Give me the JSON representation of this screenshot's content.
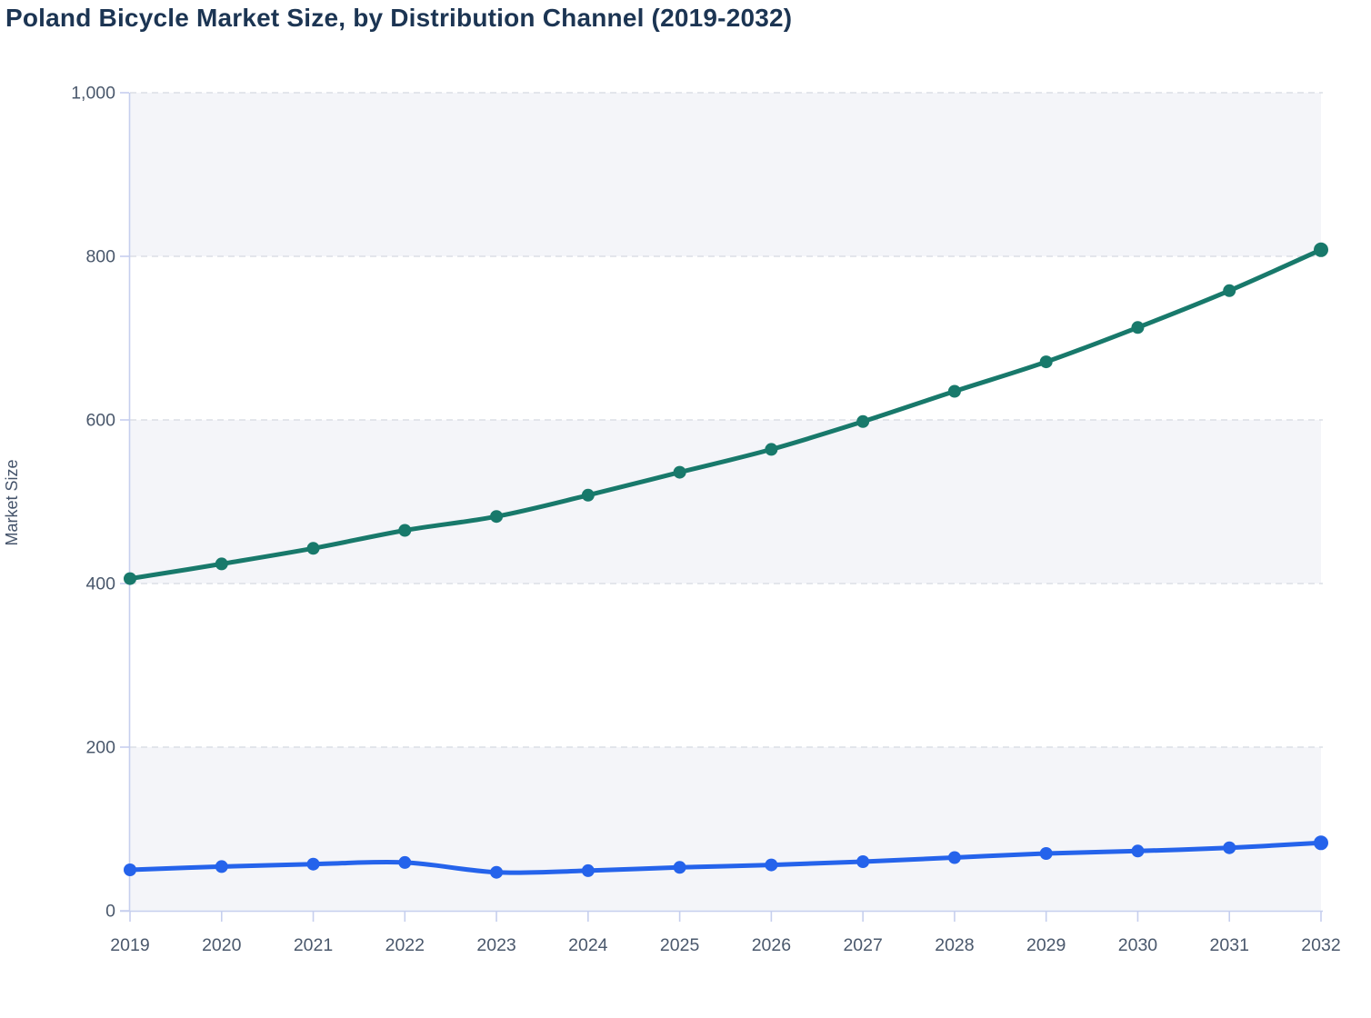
{
  "chart_data": {
    "type": "line",
    "title": "Poland Bicycle Market Size, by Distribution Channel (2019-2032)",
    "ylabel": "Market Size",
    "xlabel": "",
    "categories": [
      "2019",
      "2020",
      "2021",
      "2022",
      "2023",
      "2024",
      "2025",
      "2026",
      "2027",
      "2028",
      "2029",
      "2030",
      "2031",
      "2032"
    ],
    "series": [
      {
        "key": "upper-teal-series",
        "color": "#18796B",
        "values": [
          406,
          424,
          443,
          465,
          482,
          508,
          536,
          564,
          598,
          635,
          671,
          713,
          758,
          808
        ]
      },
      {
        "key": "lower-blue-series",
        "color": "#2563EB",
        "values": [
          50,
          54,
          57,
          59,
          47,
          49,
          53,
          56,
          60,
          65,
          70,
          73,
          77,
          83
        ]
      }
    ],
    "ylim": [
      0,
      1000
    ],
    "yticks": [
      0,
      200,
      400,
      600,
      800,
      1000
    ],
    "ytick_labels": [
      "0",
      "200",
      "400",
      "600",
      "800",
      "1,000"
    ],
    "grid": {
      "horizontal": true,
      "style": "dashed"
    },
    "legend": {
      "visible": false
    },
    "plot_bands_alternating": true
  },
  "style": {
    "background": "#FFFFFF",
    "title_color": "#1C3553",
    "tick_label_color": "#4A586C",
    "axis_line_color": "#C6CFEE",
    "gridline_color": "#DCDFE6",
    "band_fill": "#F4F5F9",
    "teal_series_color": "#18796B",
    "blue_series_color": "#2563EB"
  }
}
